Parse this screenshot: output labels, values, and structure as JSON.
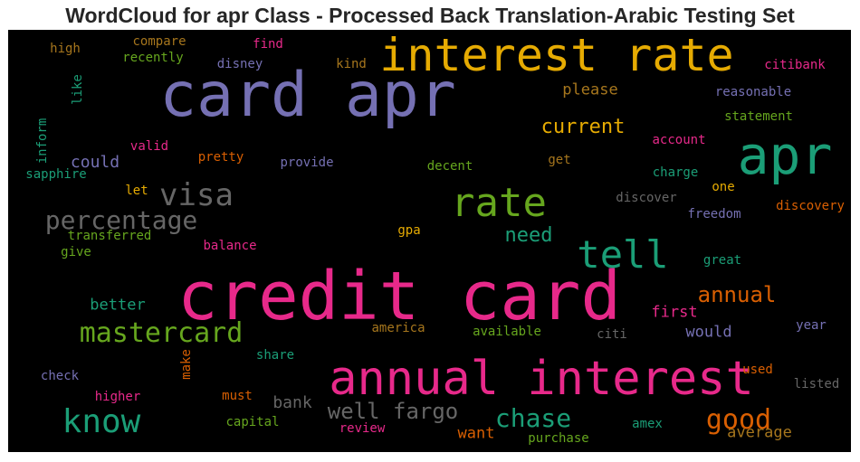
{
  "chart_data": {
    "type": "wordcloud",
    "title": "WordCloud for apr Class - Processed Back Translation-Arabic Testing Set",
    "background": "#000000",
    "colormap": [
      "#e7298a",
      "#7570b3",
      "#e6ab02",
      "#1b9e77",
      "#66a61e",
      "#d95f02",
      "#a6761d",
      "#666666"
    ],
    "words": [
      {
        "text": "credit card",
        "color": "#e7298a",
        "weight": 100
      },
      {
        "text": "card apr",
        "color": "#7570b3",
        "weight": 96
      },
      {
        "text": "annual interest",
        "color": "#e7298a",
        "weight": 72
      },
      {
        "text": "interest rate",
        "color": "#e6ab02",
        "weight": 70
      },
      {
        "text": "apr",
        "color": "#1b9e77",
        "weight": 68
      },
      {
        "text": "rate",
        "color": "#66a61e",
        "weight": 62
      },
      {
        "text": "tell",
        "color": "#1b9e77",
        "weight": 58
      },
      {
        "text": "know",
        "color": "#1b9e77",
        "weight": 50
      },
      {
        "text": "visa",
        "color": "#666666",
        "weight": 48
      },
      {
        "text": "mastercard",
        "color": "#66a61e",
        "weight": 42
      },
      {
        "text": "good",
        "color": "#d95f02",
        "weight": 42
      },
      {
        "text": "percentage",
        "color": "#666666",
        "weight": 38
      },
      {
        "text": "chase",
        "color": "#1b9e77",
        "weight": 38
      },
      {
        "text": "well fargo",
        "color": "#666666",
        "weight": 32
      },
      {
        "text": "annual",
        "color": "#d95f02",
        "weight": 32
      },
      {
        "text": "current",
        "color": "#e6ab02",
        "weight": 30
      },
      {
        "text": "need",
        "color": "#1b9e77",
        "weight": 28
      },
      {
        "text": "could",
        "color": "#7570b3",
        "weight": 24
      },
      {
        "text": "bank",
        "color": "#666666",
        "weight": 24
      },
      {
        "text": "please",
        "color": "#a6761d",
        "weight": 22
      },
      {
        "text": "better",
        "color": "#1b9e77",
        "weight": 22
      },
      {
        "text": "would",
        "color": "#7570b3",
        "weight": 22
      },
      {
        "text": "first",
        "color": "#e7298a",
        "weight": 22
      },
      {
        "text": "want",
        "color": "#d95f02",
        "weight": 22
      },
      {
        "text": "average",
        "color": "#a6761d",
        "weight": 22
      },
      {
        "text": "citibank",
        "color": "#e7298a",
        "weight": 16
      },
      {
        "text": "reasonable",
        "color": "#7570b3",
        "weight": 16
      },
      {
        "text": "statement",
        "color": "#66a61e",
        "weight": 16
      },
      {
        "text": "account",
        "color": "#e7298a",
        "weight": 16
      },
      {
        "text": "charge",
        "color": "#1b9e77",
        "weight": 16
      },
      {
        "text": "discover",
        "color": "#666666",
        "weight": 16
      },
      {
        "text": "discovery",
        "color": "#d95f02",
        "weight": 16
      },
      {
        "text": "freedom",
        "color": "#7570b3",
        "weight": 16
      },
      {
        "text": "one",
        "color": "#e6ab02",
        "weight": 16
      },
      {
        "text": "great",
        "color": "#1b9e77",
        "weight": 16
      },
      {
        "text": "year",
        "color": "#7570b3",
        "weight": 16
      },
      {
        "text": "used",
        "color": "#d95f02",
        "weight": 16
      },
      {
        "text": "listed",
        "color": "#666666",
        "weight": 16
      },
      {
        "text": "amex",
        "color": "#1b9e77",
        "weight": 16
      },
      {
        "text": "purchase",
        "color": "#66a61e",
        "weight": 16
      },
      {
        "text": "review",
        "color": "#e7298a",
        "weight": 16
      },
      {
        "text": "capital",
        "color": "#66a61e",
        "weight": 16
      },
      {
        "text": "must",
        "color": "#d95f02",
        "weight": 16
      },
      {
        "text": "higher",
        "color": "#e7298a",
        "weight": 16
      },
      {
        "text": "check",
        "color": "#7570b3",
        "weight": 16
      },
      {
        "text": "share",
        "color": "#1b9e77",
        "weight": 16
      },
      {
        "text": "make",
        "color": "#d95f02",
        "weight": 16
      },
      {
        "text": "america",
        "color": "#a6761d",
        "weight": 16
      },
      {
        "text": "available",
        "color": "#66a61e",
        "weight": 16
      },
      {
        "text": "citi",
        "color": "#666666",
        "weight": 16
      },
      {
        "text": "balance",
        "color": "#e7298a",
        "weight": 16
      },
      {
        "text": "gpa",
        "color": "#e6ab02",
        "weight": 16
      },
      {
        "text": "give",
        "color": "#66a61e",
        "weight": 16
      },
      {
        "text": "transferred",
        "color": "#66a61e",
        "weight": 16
      },
      {
        "text": "let",
        "color": "#e6ab02",
        "weight": 16
      },
      {
        "text": "sapphire",
        "color": "#1b9e77",
        "weight": 16
      },
      {
        "text": "valid",
        "color": "#e7298a",
        "weight": 16
      },
      {
        "text": "pretty",
        "color": "#d95f02",
        "weight": 16
      },
      {
        "text": "provide",
        "color": "#7570b3",
        "weight": 16
      },
      {
        "text": "decent",
        "color": "#66a61e",
        "weight": 16
      },
      {
        "text": "get",
        "color": "#a6761d",
        "weight": 16
      },
      {
        "text": "inform",
        "color": "#1b9e77",
        "weight": 16
      },
      {
        "text": "like",
        "color": "#1b9e77",
        "weight": 16
      },
      {
        "text": "high",
        "color": "#a6761d",
        "weight": 16
      },
      {
        "text": "compare",
        "color": "#a6761d",
        "weight": 16
      },
      {
        "text": "recently",
        "color": "#66a61e",
        "weight": 16
      },
      {
        "text": "disney",
        "color": "#7570b3",
        "weight": 16
      },
      {
        "text": "find",
        "color": "#e7298a",
        "weight": 16
      },
      {
        "text": "kind",
        "color": "#a6761d",
        "weight": 16
      }
    ]
  }
}
